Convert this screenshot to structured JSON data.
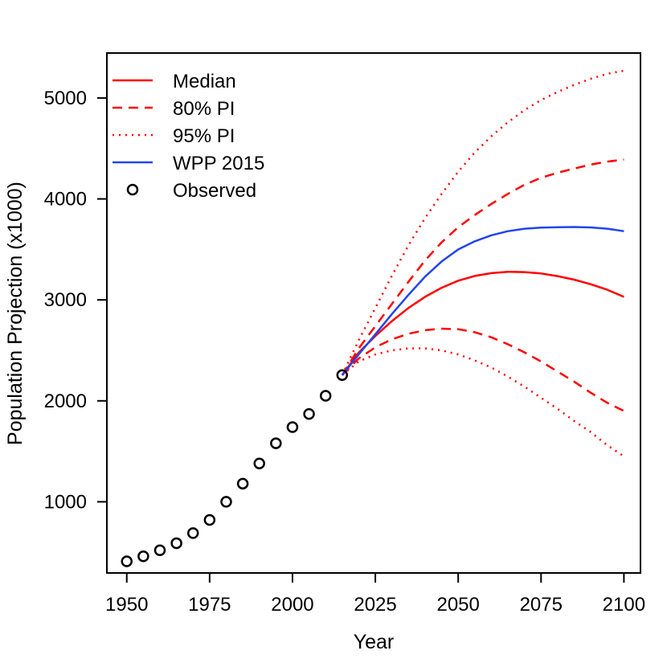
{
  "chart_data": {
    "type": "line",
    "title": "",
    "xlabel": "Year",
    "ylabel": "Population Projection (x1000)",
    "xlim": [
      1944,
      2105
    ],
    "ylim": [
      295,
      5445
    ],
    "x_ticks": [
      {
        "value": 1950,
        "label": "1950"
      },
      {
        "value": 1975,
        "label": "1975"
      },
      {
        "value": 2000,
        "label": "2000"
      },
      {
        "value": 2025,
        "label": "2025"
      },
      {
        "value": 2050,
        "label": "2050"
      },
      {
        "value": 2075,
        "label": "2075"
      },
      {
        "value": 2100,
        "label": "2100"
      }
    ],
    "y_ticks": [
      {
        "value": 1000,
        "label": "1000"
      },
      {
        "value": 2000,
        "label": "2000"
      },
      {
        "value": 3000,
        "label": "3000"
      },
      {
        "value": 4000,
        "label": "4000"
      },
      {
        "value": 5000,
        "label": "5000"
      }
    ],
    "series": [
      {
        "name": "Median",
        "color": "#ff0000",
        "dash": "solid",
        "x": [
          2015,
          2020,
          2025,
          2030,
          2035,
          2040,
          2045,
          2050,
          2055,
          2060,
          2065,
          2070,
          2075,
          2080,
          2085,
          2090,
          2095,
          2100
        ],
        "values": [
          2255,
          2478,
          2642,
          2790,
          2920,
          3030,
          3120,
          3190,
          3237,
          3265,
          3278,
          3275,
          3262,
          3235,
          3200,
          3155,
          3100,
          3030
        ]
      },
      {
        "name": "80% PI upper",
        "legend": "80% PI",
        "color": "#ff0000",
        "dash": "dashed",
        "x": [
          2015,
          2020,
          2025,
          2030,
          2035,
          2040,
          2045,
          2050,
          2055,
          2060,
          2065,
          2070,
          2075,
          2080,
          2085,
          2090,
          2095,
          2100
        ],
        "values": [
          2255,
          2520,
          2740,
          2960,
          3180,
          3390,
          3570,
          3720,
          3840,
          3950,
          4050,
          4140,
          4210,
          4260,
          4300,
          4340,
          4370,
          4390
        ]
      },
      {
        "name": "80% PI lower",
        "legend": "80% PI",
        "color": "#ff0000",
        "dash": "dashed",
        "x": [
          2015,
          2020,
          2025,
          2030,
          2035,
          2040,
          2045,
          2050,
          2055,
          2060,
          2065,
          2070,
          2075,
          2080,
          2085,
          2090,
          2095,
          2100
        ],
        "values": [
          2255,
          2420,
          2530,
          2610,
          2665,
          2700,
          2715,
          2710,
          2680,
          2630,
          2560,
          2480,
          2390,
          2290,
          2190,
          2080,
          1980,
          1900
        ]
      },
      {
        "name": "95% PI upper",
        "legend": "95% PI",
        "color": "#ff0000",
        "dash": "dotted",
        "x": [
          2015,
          2020,
          2025,
          2030,
          2035,
          2040,
          2045,
          2050,
          2055,
          2060,
          2065,
          2070,
          2075,
          2080,
          2085,
          2090,
          2095,
          2100
        ],
        "values": [
          2255,
          2600,
          2920,
          3240,
          3540,
          3810,
          4050,
          4270,
          4460,
          4620,
          4760,
          4880,
          4980,
          5060,
          5130,
          5190,
          5240,
          5270
        ]
      },
      {
        "name": "95% PI lower",
        "legend": "95% PI",
        "color": "#ff0000",
        "dash": "dotted",
        "x": [
          2015,
          2020,
          2025,
          2030,
          2035,
          2040,
          2045,
          2050,
          2055,
          2060,
          2065,
          2070,
          2075,
          2080,
          2085,
          2090,
          2095,
          2100
        ],
        "values": [
          2255,
          2390,
          2460,
          2500,
          2520,
          2520,
          2500,
          2460,
          2400,
          2330,
          2240,
          2140,
          2030,
          1920,
          1800,
          1690,
          1560,
          1450
        ]
      },
      {
        "name": "WPP 2015",
        "color": "#2244ee",
        "dash": "solid",
        "x": [
          2015,
          2020,
          2025,
          2030,
          2035,
          2040,
          2045,
          2050,
          2055,
          2060,
          2065,
          2070,
          2075,
          2080,
          2085,
          2090,
          2095,
          2100
        ],
        "values": [
          2255,
          2460,
          2660,
          2860,
          3050,
          3230,
          3380,
          3500,
          3580,
          3640,
          3680,
          3705,
          3715,
          3720,
          3722,
          3718,
          3705,
          3680
        ]
      },
      {
        "name": "Observed",
        "color": "#000000",
        "marker": "open-circle",
        "x": [
          1950,
          1955,
          1960,
          1965,
          1970,
          1975,
          1980,
          1985,
          1990,
          1995,
          2000,
          2005,
          2010,
          2015
        ],
        "values": [
          410,
          460,
          520,
          590,
          690,
          820,
          1000,
          1180,
          1380,
          1580,
          1740,
          1870,
          2050,
          2255
        ]
      }
    ],
    "legend": {
      "position": "top-left",
      "entries": [
        {
          "label": "Median",
          "color": "#ff0000",
          "style": "solid"
        },
        {
          "label": "80% PI",
          "color": "#ff0000",
          "style": "dashed"
        },
        {
          "label": "95% PI",
          "color": "#ff0000",
          "style": "dotted"
        },
        {
          "label": "WPP 2015",
          "color": "#2244ee",
          "style": "solid"
        },
        {
          "label": "Observed",
          "color": "#000000",
          "style": "circle"
        }
      ]
    }
  }
}
